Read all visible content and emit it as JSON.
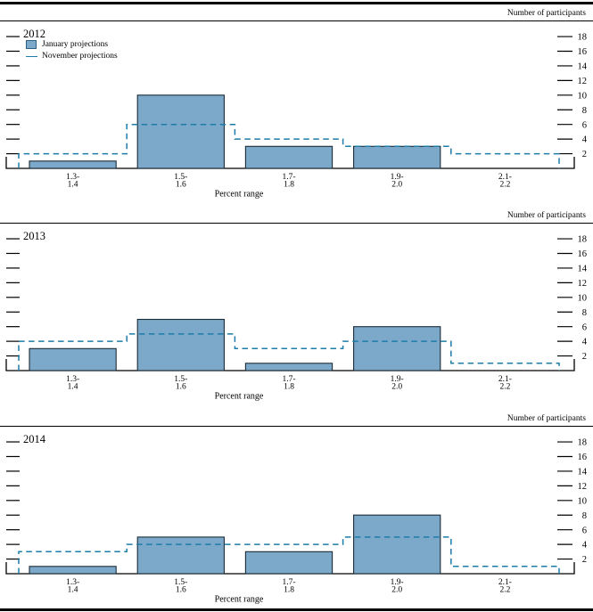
{
  "colors": {
    "bar_fill": "#7CA8CA",
    "bar_stroke": "#1C2B36",
    "legend_swatch_border": "#2B5F85",
    "step_line": "#1D7CA8",
    "rule": "#000000"
  },
  "chart_data": [
    {
      "type": "bar",
      "title": "2012",
      "ylabel": "Number of participants",
      "xlabel": "Percent range",
      "ylim": [
        0,
        20
      ],
      "yticks": [
        2,
        4,
        6,
        8,
        10,
        12,
        14,
        16,
        18
      ],
      "categories": [
        "1.3-\n1.4",
        "1.5-\n1.6",
        "1.7-\n1.8",
        "1.9-\n2.0",
        "2.1-\n2.2"
      ],
      "legend_position": "top-left",
      "grid": false,
      "series": [
        {
          "name": "January projections",
          "style": "bar",
          "values": [
            1,
            10,
            3,
            3,
            0
          ]
        },
        {
          "name": "November projections",
          "style": "dashed-step",
          "values": [
            2,
            6,
            4,
            3,
            2
          ]
        }
      ]
    },
    {
      "type": "bar",
      "title": "2013",
      "ylabel": "Number of participants",
      "xlabel": "Percent range",
      "ylim": [
        0,
        20
      ],
      "yticks": [
        2,
        4,
        6,
        8,
        10,
        12,
        14,
        16,
        18
      ],
      "categories": [
        "1.3-\n1.4",
        "1.5-\n1.6",
        "1.7-\n1.8",
        "1.9-\n2.0",
        "2.1-\n2.2"
      ],
      "grid": false,
      "series": [
        {
          "name": "January projections",
          "style": "bar",
          "values": [
            3,
            7,
            1,
            6,
            0
          ]
        },
        {
          "name": "November projections",
          "style": "dashed-step",
          "values": [
            4,
            5,
            3,
            4,
            1
          ]
        }
      ]
    },
    {
      "type": "bar",
      "title": "2014",
      "ylabel": "Number of participants",
      "xlabel": "Percent range",
      "ylim": [
        0,
        20
      ],
      "yticks": [
        2,
        4,
        6,
        8,
        10,
        12,
        14,
        16,
        18
      ],
      "categories": [
        "1.3-\n1.4",
        "1.5-\n1.6",
        "1.7-\n1.8",
        "1.9-\n2.0",
        "2.1-\n2.2"
      ],
      "grid": false,
      "series": [
        {
          "name": "January projections",
          "style": "bar",
          "values": [
            1,
            5,
            3,
            8,
            0
          ]
        },
        {
          "name": "November projections",
          "style": "dashed-step",
          "values": [
            3,
            4,
            4,
            5,
            1
          ]
        }
      ]
    }
  ]
}
